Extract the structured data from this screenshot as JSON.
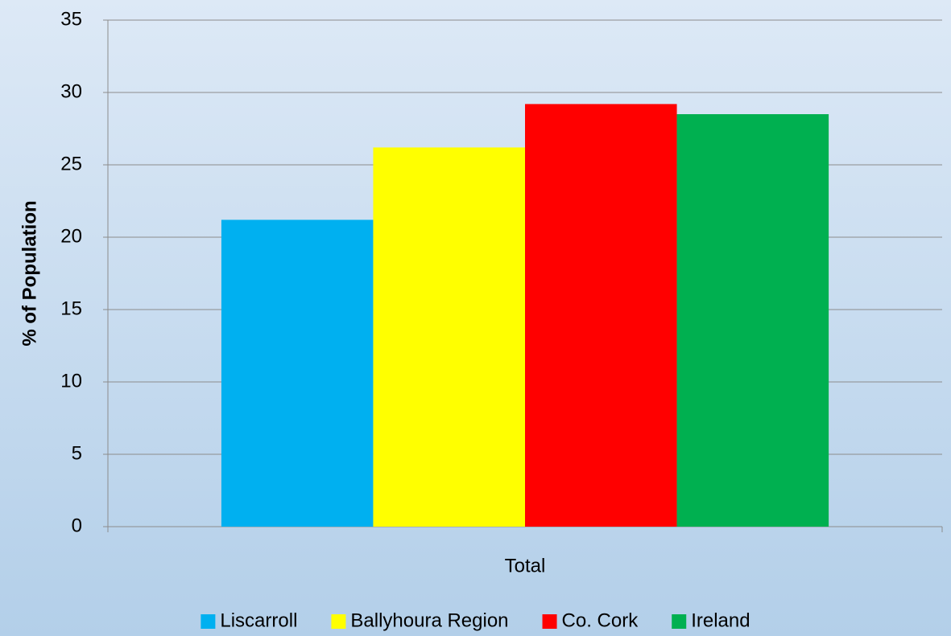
{
  "chart_data": {
    "type": "bar",
    "y_label": "% of Population",
    "categories": [
      "Total"
    ],
    "series": [
      {
        "name": "Liscarroll",
        "color": "#00b0f0",
        "values": [
          21.2
        ]
      },
      {
        "name": "Ballyhoura Region",
        "color": "#ffff00",
        "values": [
          26.2
        ]
      },
      {
        "name": "Co. Cork",
        "color": "#ff0000",
        "values": [
          29.2
        ]
      },
      {
        "name": "Ireland",
        "color": "#00b050",
        "values": [
          28.5
        ]
      }
    ],
    "ylim": [
      0,
      35
    ],
    "yticks": [
      0,
      5,
      10,
      15,
      20,
      25,
      30,
      35
    ],
    "grid": true,
    "legend": "bottom"
  }
}
